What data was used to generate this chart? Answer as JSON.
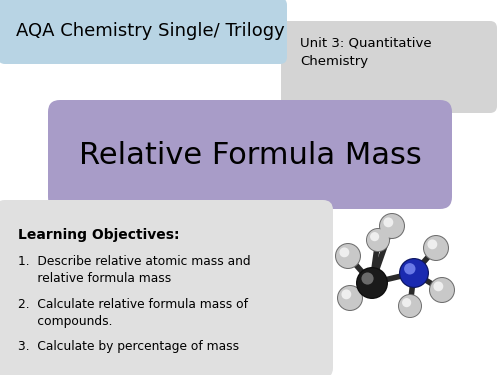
{
  "bg_color": "#ffffff",
  "title_box_color": "#a89cc8",
  "title_text": "Relative Formula Mass",
  "title_text_color": "#000000",
  "header_box1_color": "#b8d4e4",
  "header_box2_color": "#d4d4d4",
  "header1_text": "AQA Chemistry Single/ Trilogy",
  "header2_text": "Unit 3: Quantitative\nChemistry",
  "lo_box_color": "#e0e0e0",
  "lo_title": "Learning Objectives:",
  "lo_item1": "1.  Describe relative atomic mass and\n     relative formula mass",
  "lo_item2": "2.  Calculate relative formula mass of\n     compounds.",
  "lo_item3": "3.  Calculate by percentage of mass",
  "font_family": "DejaVu Sans",
  "figw": 5.0,
  "figh": 3.75,
  "dpi": 100
}
